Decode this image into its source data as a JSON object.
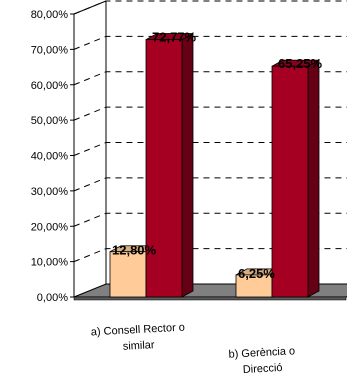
{
  "chart_data": {
    "type": "bar",
    "three_d": true,
    "categories": [
      [
        "a) Consell Rector o",
        "similar"
      ],
      [
        "b) Gerència o",
        "Direcció"
      ]
    ],
    "series": [
      {
        "color": "#ffcc99",
        "values": [
          12.8,
          6.25
        ],
        "labels": [
          "12,80%",
          "6,25%"
        ]
      },
      {
        "color": "#a50021",
        "values": [
          72.77,
          65.25
        ],
        "labels": [
          "72,77%",
          "65,25%"
        ]
      }
    ],
    "ylim": [
      0,
      80
    ],
    "yticks": [
      "0,00%",
      "10,00%",
      "20,00%",
      "30,00%",
      "40,00%",
      "50,00%",
      "60,00%",
      "70,00%",
      "80,00%"
    ],
    "grid": true,
    "gridline_style": "dashed",
    "floor_color": "#808080",
    "legend": "none"
  }
}
